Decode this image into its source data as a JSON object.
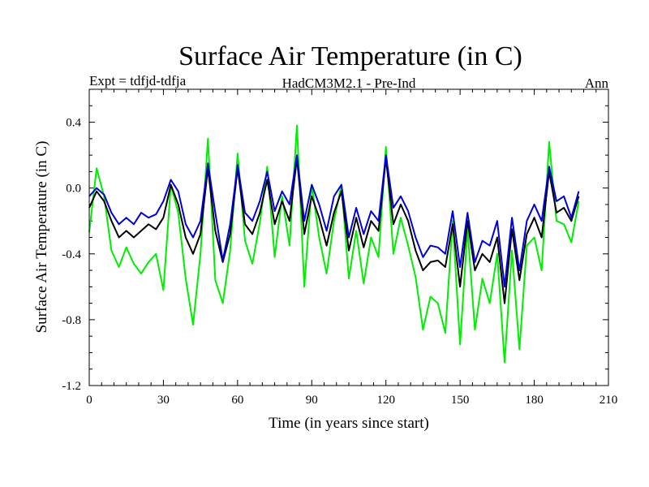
{
  "chart_data": {
    "type": "line",
    "title": "Surface Air Temperature (in C)",
    "subtitle_left": "Expt = tdfjd-tdfja",
    "subtitle_center": "HadCM3M2.1 - Pre-Ind",
    "subtitle_right": "Ann",
    "xlabel": "Time (in years since start)",
    "ylabel": "Surface Air Temperature (in C)",
    "xlim": [
      0,
      210
    ],
    "ylim": [
      -1.2,
      0.6
    ],
    "xticks": [
      0,
      30,
      60,
      90,
      120,
      150,
      180,
      210
    ],
    "yticks": [
      -1.2,
      -0.8,
      -0.4,
      0.0,
      0.4
    ],
    "xtick_labels": [
      "0",
      "30",
      "60",
      "90",
      "120",
      "150",
      "180",
      "210"
    ],
    "ytick_labels": [
      "-1.2",
      "-0.8",
      "-0.4",
      "0.0",
      "0.4"
    ],
    "series": [
      {
        "name": "green",
        "color": "#00ee00",
        "x": [
          0,
          3,
          6,
          9,
          12,
          15,
          18,
          21,
          24,
          27,
          30,
          33,
          36,
          39,
          42,
          45,
          48,
          51,
          54,
          57,
          60,
          63,
          66,
          69,
          72,
          75,
          78,
          81,
          84,
          87,
          90,
          93,
          96,
          99,
          102,
          105,
          108,
          111,
          114,
          117,
          120,
          123,
          126,
          129,
          132,
          135,
          138,
          141,
          144,
          147,
          150,
          153,
          156,
          159,
          162,
          165,
          168,
          171,
          174,
          177,
          180,
          183,
          186,
          189,
          192,
          195,
          198
        ],
        "values": [
          -0.27,
          0.12,
          -0.05,
          -0.38,
          -0.48,
          -0.36,
          -0.46,
          -0.52,
          -0.45,
          -0.4,
          -0.62,
          0.02,
          -0.15,
          -0.55,
          -0.83,
          -0.4,
          0.3,
          -0.56,
          -0.7,
          -0.38,
          0.21,
          -0.32,
          -0.46,
          -0.21,
          0.13,
          -0.42,
          -0.05,
          -0.35,
          0.38,
          -0.6,
          0.02,
          -0.3,
          -0.52,
          -0.2,
          0.02,
          -0.55,
          -0.26,
          -0.58,
          -0.3,
          -0.42,
          0.25,
          -0.4,
          -0.18,
          -0.35,
          -0.54,
          -0.86,
          -0.66,
          -0.7,
          -0.88,
          -0.2,
          -0.95,
          -0.25,
          -0.86,
          -0.55,
          -0.7,
          -0.4,
          -1.06,
          -0.38,
          -0.98,
          -0.35,
          -0.3,
          -0.5,
          0.28,
          -0.2,
          -0.22,
          -0.33,
          -0.08
        ]
      },
      {
        "name": "black",
        "color": "#000000",
        "x": [
          0,
          3,
          6,
          9,
          12,
          15,
          18,
          21,
          24,
          27,
          30,
          33,
          36,
          39,
          42,
          45,
          48,
          51,
          54,
          57,
          60,
          63,
          66,
          69,
          72,
          75,
          78,
          81,
          84,
          87,
          90,
          93,
          96,
          99,
          102,
          105,
          108,
          111,
          114,
          117,
          120,
          123,
          126,
          129,
          132,
          135,
          138,
          141,
          144,
          147,
          150,
          153,
          156,
          159,
          162,
          165,
          168,
          171,
          174,
          177,
          180,
          183,
          186,
          189,
          192,
          195,
          198
        ],
        "values": [
          -0.12,
          -0.02,
          -0.08,
          -0.2,
          -0.3,
          -0.26,
          -0.3,
          -0.26,
          -0.22,
          -0.25,
          -0.18,
          0.02,
          -0.1,
          -0.3,
          -0.4,
          -0.28,
          0.12,
          -0.26,
          -0.45,
          -0.28,
          0.12,
          -0.22,
          -0.28,
          -0.15,
          0.05,
          -0.22,
          -0.08,
          -0.2,
          0.18,
          -0.28,
          -0.05,
          -0.18,
          -0.35,
          -0.15,
          -0.02,
          -0.38,
          -0.18,
          -0.36,
          -0.2,
          -0.26,
          0.18,
          -0.22,
          -0.1,
          -0.2,
          -0.38,
          -0.5,
          -0.45,
          -0.44,
          -0.48,
          -0.22,
          -0.6,
          -0.2,
          -0.5,
          -0.4,
          -0.45,
          -0.3,
          -0.7,
          -0.25,
          -0.56,
          -0.28,
          -0.18,
          -0.3,
          0.1,
          -0.15,
          -0.12,
          -0.2,
          -0.05
        ]
      },
      {
        "name": "blue",
        "color": "#0000dd",
        "x": [
          0,
          3,
          6,
          9,
          12,
          15,
          18,
          21,
          24,
          27,
          30,
          33,
          36,
          39,
          42,
          45,
          48,
          51,
          54,
          57,
          60,
          63,
          66,
          69,
          72,
          75,
          78,
          81,
          84,
          87,
          90,
          93,
          96,
          99,
          102,
          105,
          108,
          111,
          114,
          117,
          120,
          123,
          126,
          129,
          132,
          135,
          138,
          141,
          144,
          147,
          150,
          153,
          156,
          159,
          162,
          165,
          168,
          171,
          174,
          177,
          180,
          183,
          186,
          189,
          192,
          195,
          198
        ],
        "values": [
          -0.05,
          0.0,
          -0.04,
          -0.15,
          -0.22,
          -0.18,
          -0.22,
          -0.15,
          -0.18,
          -0.16,
          -0.08,
          0.05,
          -0.02,
          -0.22,
          -0.3,
          -0.2,
          0.15,
          -0.15,
          -0.44,
          -0.22,
          0.14,
          -0.15,
          -0.2,
          -0.08,
          0.1,
          -0.14,
          -0.02,
          -0.1,
          0.2,
          -0.2,
          0.02,
          -0.1,
          -0.26,
          -0.05,
          0.02,
          -0.3,
          -0.12,
          -0.28,
          -0.14,
          -0.2,
          0.2,
          -0.12,
          -0.05,
          -0.14,
          -0.3,
          -0.42,
          -0.35,
          -0.36,
          -0.4,
          -0.14,
          -0.48,
          -0.15,
          -0.45,
          -0.32,
          -0.35,
          -0.2,
          -0.6,
          -0.18,
          -0.5,
          -0.2,
          -0.1,
          -0.2,
          0.13,
          -0.08,
          -0.05,
          -0.18,
          -0.02
        ]
      }
    ]
  }
}
